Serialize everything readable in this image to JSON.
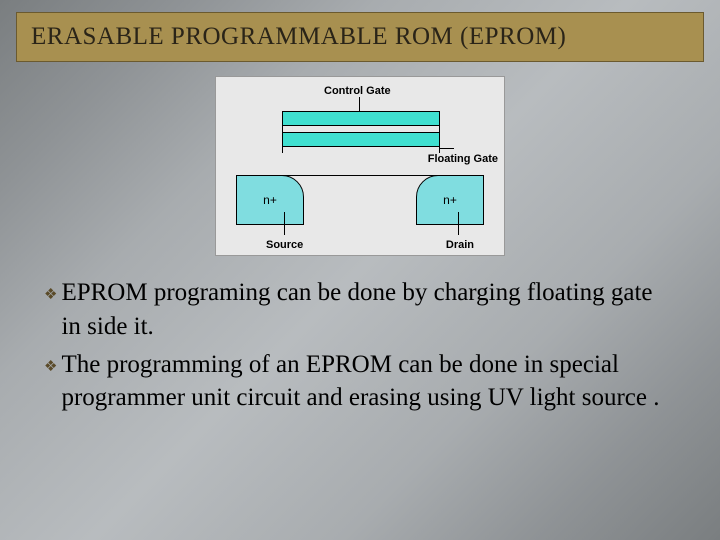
{
  "title": "ERASABLE PROGRAMMABLE ROM (EPROM)",
  "diagram": {
    "labels": {
      "control_gate": "Control Gate",
      "floating_gate": "Floating Gate",
      "source": "Source",
      "drain": "Drain",
      "nplus": "n+"
    },
    "colors": {
      "gate_fill": "#40e0d0",
      "well_fill": "#80dde0",
      "background": "#e8e8e8",
      "border": "#000000"
    }
  },
  "bullets": [
    "EPROM programing can be done by charging floating gate in side it.",
    "The programming of an EPROM can be done in special programmer unit circuit and erasing using UV light source ."
  ],
  "styling": {
    "title_bar_bg": "#a89050",
    "title_fontsize": 25,
    "body_fontsize": 25,
    "slide_bg_gradient": [
      "#7a7e80",
      "#b8bcbf"
    ],
    "bullet_icon_color": "#5a4a28"
  }
}
